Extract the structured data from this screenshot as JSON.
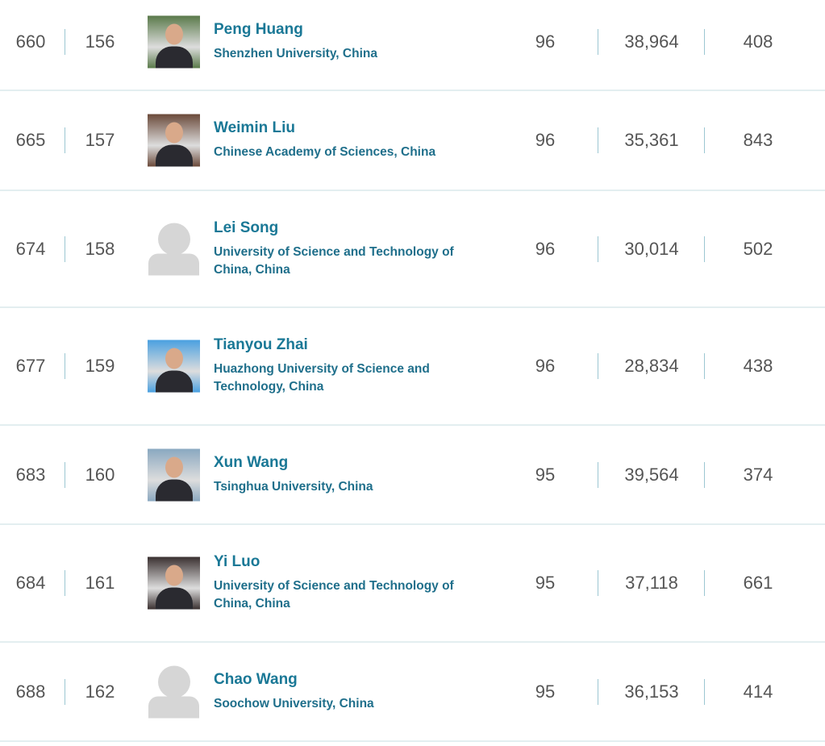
{
  "table": {
    "rows": [
      [
        "660",
        "156",
        "Peng Huang",
        "Shenzhen University, China",
        "96",
        "38,964",
        "408"
      ],
      [
        "665",
        "157",
        "Weimin Liu",
        "Chinese Academy of Sciences, China",
        "96",
        "35,361",
        "843"
      ],
      [
        "674",
        "158",
        "Lei Song",
        "University of Science and Technology of China, China",
        "96",
        "30,014",
        "502"
      ],
      [
        "677",
        "159",
        "Tianyou Zhai",
        "Huazhong University of Science and Technology, China",
        "96",
        "28,834",
        "438"
      ],
      [
        "683",
        "160",
        "Xun Wang",
        "Tsinghua University, China",
        "95",
        "39,564",
        "374"
      ],
      [
        "684",
        "161",
        "Yi Luo",
        "University of Science and Technology of China, China",
        "95",
        "37,118",
        "661"
      ],
      [
        "688",
        "162",
        "Chao Wang",
        "Soochow University, China",
        "95",
        "36,153",
        "414"
      ]
    ]
  }
}
